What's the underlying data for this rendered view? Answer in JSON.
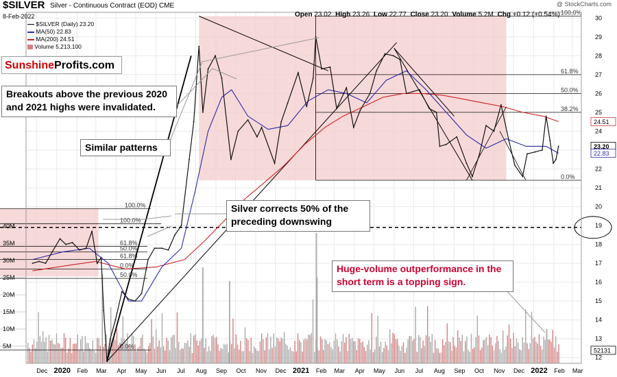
{
  "header": {
    "ticker": "$SILVER",
    "description": "Silver - Continuous Contract (EOD)",
    "exchange": "CME",
    "date": "8-Feb-2022",
    "credit": "@ StockCharts.com",
    "quote": {
      "open_label": "Open",
      "open": "23.02",
      "high_label": "High",
      "high": "23.26",
      "low_label": "Low",
      "low": "22.77",
      "close_label": "Close",
      "close": "23.20",
      "volume_label": "Volume",
      "volume": "5.2M",
      "chg_label": "Chg",
      "chg": "+0.12 (+0.54%)"
    }
  },
  "legend": {
    "price": "$SILVER (Daily) 23.20",
    "ma50": "MA(50) 22.83",
    "ma200": "MA(200) 24.51",
    "volume": "Volume 5,213,100"
  },
  "brand": {
    "part1": "Sunshine",
    "part2": "Profits.com",
    "part1_color": "#cc0000",
    "part2_color": "#000000"
  },
  "annotations": {
    "breakouts": "Breakouts above the previous 2020 and 2021 highs were invalidated.",
    "similar": "Similar patterns",
    "corrects": "Silver corrects 50% of the preceding downswing",
    "volume_note": "Huge-volume outperformance in the short term is a topping sign.",
    "volume_note_color": "#cc0033"
  },
  "colors": {
    "price_candle": "#111111",
    "ma50": "#2a2aa8",
    "ma200": "#cc2222",
    "shade": "#f3cccc",
    "volume_bar": "#d48080",
    "volume_bar_alt": "#aaaaaa",
    "grid": "#e8e8e8",
    "ma200_tag": "#cc3333",
    "ma50_tag": "#2a2aa8"
  },
  "chart_data": {
    "type": "line",
    "title": "$SILVER Silver - Continuous Contract (EOD) CME",
    "xlabel": "",
    "ylabel": "",
    "x_ticks": [
      "Dec",
      "2020",
      "Feb",
      "Mar",
      "Apr",
      "May",
      "Jun",
      "Jul",
      "Aug",
      "Sep",
      "Oct",
      "Nov",
      "Dec",
      "2021",
      "Feb",
      "Mar",
      "Apr",
      "May",
      "Jun",
      "Jul",
      "Aug",
      "Sep",
      "Oct",
      "Nov",
      "Dec",
      "2022",
      "Feb",
      "Mar"
    ],
    "y_ticks": [
      12,
      13,
      14,
      15,
      16,
      17,
      18,
      19,
      20,
      21,
      22,
      23,
      24,
      25,
      26,
      27,
      28,
      29,
      30
    ],
    "ylim": [
      11.7,
      30.3
    ],
    "volume_ticks": [
      "5M",
      "10M",
      "15M",
      "20M",
      "25M",
      "30M",
      "35M",
      "40M"
    ],
    "volume_tick_values": [
      5,
      10,
      15,
      20,
      25,
      30,
      35,
      40
    ],
    "volume_ylim": [
      0,
      52
    ],
    "right_tags": [
      {
        "label": "24.51",
        "value": 24.51,
        "kind": "ma200"
      },
      {
        "label": "23.20",
        "value": 23.2,
        "kind": "price"
      },
      {
        "label": "22.83",
        "value": 22.83,
        "kind": "ma50"
      },
      {
        "label": "52131",
        "value": 12.0,
        "kind": "volume"
      }
    ],
    "series": [
      {
        "name": "$SILVER (Daily)",
        "points": [
          [
            "2019-11-25",
            17.0
          ],
          [
            "2019-12-05",
            17.1
          ],
          [
            "2019-12-15",
            17.0
          ],
          [
            "2019-12-25",
            17.6
          ],
          [
            "2020-01-06",
            18.3
          ],
          [
            "2020-01-15",
            18.0
          ],
          [
            "2020-01-25",
            18.1
          ],
          [
            "2020-02-05",
            17.7
          ],
          [
            "2020-02-15",
            17.8
          ],
          [
            "2020-02-24",
            18.7
          ],
          [
            "2020-03-03",
            17.0
          ],
          [
            "2020-03-09",
            17.3
          ],
          [
            "2020-03-13",
            14.5
          ],
          [
            "2020-03-18",
            11.8
          ],
          [
            "2020-03-23",
            13.0
          ],
          [
            "2020-03-31",
            14.0
          ],
          [
            "2020-04-10",
            15.5
          ],
          [
            "2020-04-20",
            15.1
          ],
          [
            "2020-04-30",
            15.0
          ],
          [
            "2020-05-10",
            15.4
          ],
          [
            "2020-05-20",
            17.2
          ],
          [
            "2020-05-30",
            17.8
          ],
          [
            "2020-06-10",
            17.8
          ],
          [
            "2020-06-20",
            17.7
          ],
          [
            "2020-06-30",
            18.5
          ],
          [
            "2020-07-10",
            19.0
          ],
          [
            "2020-07-22",
            22.5
          ],
          [
            "2020-07-29",
            24.5
          ],
          [
            "2020-08-06",
            28.5
          ],
          [
            "2020-08-12",
            25.0
          ],
          [
            "2020-08-20",
            27.3
          ],
          [
            "2020-08-31",
            28.0
          ],
          [
            "2020-09-10",
            26.8
          ],
          [
            "2020-09-24",
            22.5
          ],
          [
            "2020-10-05",
            24.0
          ],
          [
            "2020-10-20",
            24.6
          ],
          [
            "2020-11-03",
            23.7
          ],
          [
            "2020-11-10",
            24.2
          ],
          [
            "2020-11-30",
            22.3
          ],
          [
            "2020-12-10",
            24.5
          ],
          [
            "2020-12-20",
            25.5
          ],
          [
            "2021-01-05",
            27.1
          ],
          [
            "2021-01-18",
            25.3
          ],
          [
            "2021-01-28",
            26.8
          ],
          [
            "2021-02-01",
            29.0
          ],
          [
            "2021-02-10",
            27.3
          ],
          [
            "2021-02-23",
            27.4
          ],
          [
            "2021-03-05",
            25.2
          ],
          [
            "2021-03-20",
            26.3
          ],
          [
            "2021-03-31",
            24.2
          ],
          [
            "2021-04-10",
            25.1
          ],
          [
            "2021-04-25",
            26.0
          ],
          [
            "2021-05-05",
            27.2
          ],
          [
            "2021-05-18",
            28.1
          ],
          [
            "2021-05-31",
            28.0
          ],
          [
            "2021-06-10",
            27.8
          ],
          [
            "2021-06-20",
            26.0
          ],
          [
            "2021-06-30",
            26.1
          ],
          [
            "2021-07-10",
            26.2
          ],
          [
            "2021-07-25",
            25.2
          ],
          [
            "2021-08-05",
            25.0
          ],
          [
            "2021-08-10",
            23.2
          ],
          [
            "2021-08-20",
            23.3
          ],
          [
            "2021-09-05",
            23.7
          ],
          [
            "2021-09-20",
            22.3
          ],
          [
            "2021-09-29",
            21.6
          ],
          [
            "2021-10-10",
            22.8
          ],
          [
            "2021-10-20",
            24.3
          ],
          [
            "2021-11-01",
            24.0
          ],
          [
            "2021-11-12",
            25.4
          ],
          [
            "2021-11-24",
            23.5
          ],
          [
            "2021-12-03",
            22.2
          ],
          [
            "2021-12-15",
            21.6
          ],
          [
            "2021-12-22",
            22.8
          ],
          [
            "2022-01-03",
            22.9
          ],
          [
            "2022-01-14",
            23.0
          ],
          [
            "2022-01-20",
            24.8
          ],
          [
            "2022-01-26",
            23.5
          ],
          [
            "2022-01-31",
            22.3
          ],
          [
            "2022-02-04",
            22.5
          ],
          [
            "2022-02-08",
            23.2
          ]
        ]
      },
      {
        "name": "MA(50)",
        "points": [
          [
            "2019-11-25",
            17.2
          ],
          [
            "2020-01-10",
            17.6
          ],
          [
            "2020-02-20",
            17.8
          ],
          [
            "2020-03-20",
            17.0
          ],
          [
            "2020-04-20",
            15.0
          ],
          [
            "2020-05-10",
            15.0
          ],
          [
            "2020-06-10",
            16.8
          ],
          [
            "2020-07-10",
            17.8
          ],
          [
            "2020-07-31",
            20.8
          ],
          [
            "2020-08-20",
            24.0
          ],
          [
            "2020-09-10",
            25.8
          ],
          [
            "2020-09-25",
            26.2
          ],
          [
            "2020-10-20",
            24.8
          ],
          [
            "2020-11-20",
            24.1
          ],
          [
            "2020-12-20",
            24.3
          ],
          [
            "2021-01-20",
            25.6
          ],
          [
            "2021-02-20",
            26.2
          ],
          [
            "2021-03-20",
            26.0
          ],
          [
            "2021-04-20",
            25.5
          ],
          [
            "2021-05-20",
            26.7
          ],
          [
            "2021-06-20",
            27.2
          ],
          [
            "2021-07-20",
            26.2
          ],
          [
            "2021-08-20",
            25.0
          ],
          [
            "2021-09-20",
            23.8
          ],
          [
            "2021-10-20",
            23.1
          ],
          [
            "2021-11-20",
            23.6
          ],
          [
            "2021-12-20",
            23.2
          ],
          [
            "2022-01-20",
            23.2
          ],
          [
            "2022-02-08",
            22.83
          ]
        ]
      },
      {
        "name": "MA(200)",
        "points": [
          [
            "2019-11-25",
            16.6
          ],
          [
            "2020-01-20",
            16.9
          ],
          [
            "2020-03-01",
            17.1
          ],
          [
            "2020-04-15",
            16.7
          ],
          [
            "2020-06-01",
            16.8
          ],
          [
            "2020-07-15",
            17.2
          ],
          [
            "2020-08-15",
            18.2
          ],
          [
            "2020-09-15",
            19.3
          ],
          [
            "2020-10-15",
            20.4
          ],
          [
            "2020-11-15",
            21.3
          ],
          [
            "2020-12-15",
            22.2
          ],
          [
            "2021-01-15",
            23.3
          ],
          [
            "2021-02-15",
            24.2
          ],
          [
            "2021-03-15",
            24.8
          ],
          [
            "2021-04-15",
            25.3
          ],
          [
            "2021-05-15",
            25.8
          ],
          [
            "2021-06-15",
            26.0
          ],
          [
            "2021-07-15",
            26.0
          ],
          [
            "2021-08-15",
            25.9
          ],
          [
            "2021-09-15",
            25.7
          ],
          [
            "2021-10-15",
            25.5
          ],
          [
            "2021-11-15",
            25.3
          ],
          [
            "2021-12-15",
            25.0
          ],
          [
            "2022-01-15",
            24.8
          ],
          [
            "2022-02-08",
            24.51
          ]
        ]
      }
    ],
    "fib_levels": [
      {
        "label": "100.0%",
        "value": 30.1
      },
      {
        "label": "61.8%",
        "value": 27.0
      },
      {
        "label": "50.0%",
        "value": 26.0
      },
      {
        "label": "38.2%",
        "value": 25.0
      },
      {
        "label": "0.0%",
        "value": 21.4
      },
      {
        "label": "100.0%",
        "value": 19.9
      },
      {
        "label": "100.0%",
        "value": 19.1
      },
      {
        "label": "61.8%",
        "value": 17.9
      },
      {
        "label": "50.0%",
        "value": 17.6
      },
      {
        "label": "61.8%",
        "value": 17.2
      },
      {
        "label": "0.0%",
        "value": 16.7
      },
      {
        "label": "50.0%",
        "value": 16.2
      },
      {
        "label": "0.0%",
        "value": 12.4
      }
    ],
    "dashed_level": 18.9
  }
}
